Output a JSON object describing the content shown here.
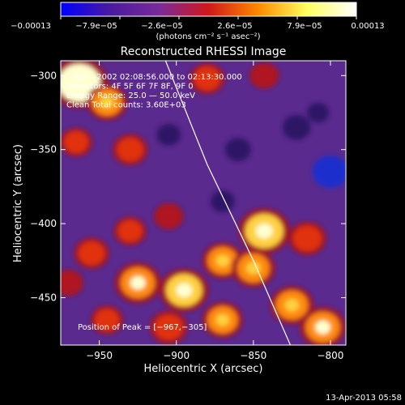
{
  "chart_data": {
    "type": "heatmap",
    "title": "Reconstructed RHESSI Image",
    "xlabel": "Heliocentric X (arcsec)",
    "ylabel": "Heliocentric Y (arcsec)",
    "xlim": [
      -975,
      -790
    ],
    "ylim": [
      -482,
      -290
    ],
    "x_ticks": [
      {
        "value": -950,
        "label": "−950"
      },
      {
        "value": -900,
        "label": "−900"
      },
      {
        "value": -850,
        "label": "−850"
      },
      {
        "value": -800,
        "label": "−800"
      }
    ],
    "y_ticks": [
      {
        "value": -300,
        "label": "−300"
      },
      {
        "value": -350,
        "label": "−350"
      },
      {
        "value": -400,
        "label": "−400"
      },
      {
        "value": -450,
        "label": "−450"
      }
    ],
    "colorbar": {
      "min": -0.00013,
      "max": 0.00013,
      "tick_labels": [
        "−0.00013",
        "−7.9e−05",
        "−2.6e−05",
        "2.6e−05",
        "7.9e−05",
        "0.00013"
      ],
      "unit_label": "(photons cm⁻² s⁻¹ asec⁻²)",
      "colors": [
        "#0000ff",
        "#4a1aa0",
        "#7a2a9a",
        "#d01818",
        "#ff8800",
        "#ffff60",
        "#ffffff"
      ]
    },
    "annotations": [
      "—Apr—2002 02:08:56.000 to 02:13:30.000",
      "Detectors: 4F 5F 6F 7F 8F, 9F 0",
      "Energy Range: 25.0 — 50.0 keV",
      "Clean    Total counts: 3.60E+03"
    ],
    "peak_label": "Position of Peak = [−967,−305]",
    "limb_curve": [
      [
        -907,
        -290
      ],
      [
        -880,
        -360
      ],
      [
        -850,
        -425
      ],
      [
        -826,
        -482
      ]
    ],
    "blobs": [
      {
        "x": -963,
        "y": -305,
        "value": 0.00013
      },
      {
        "x": -945,
        "y": -318,
        "value": 7e-05
      },
      {
        "x": -930,
        "y": -350,
        "value": 5e-05
      },
      {
        "x": -965,
        "y": -345,
        "value": 4e-05
      },
      {
        "x": -880,
        "y": -302,
        "value": 5e-05
      },
      {
        "x": -843,
        "y": -300,
        "value": 3e-05
      },
      {
        "x": -905,
        "y": -395,
        "value": 3e-05
      },
      {
        "x": -930,
        "y": -405,
        "value": 4e-05
      },
      {
        "x": -955,
        "y": -420,
        "value": 5e-05
      },
      {
        "x": -925,
        "y": -440,
        "value": 9e-05
      },
      {
        "x": -895,
        "y": -445,
        "value": 0.0001
      },
      {
        "x": -870,
        "y": -425,
        "value": 7e-05
      },
      {
        "x": -850,
        "y": -430,
        "value": 8e-05
      },
      {
        "x": -843,
        "y": -405,
        "value": 0.00011
      },
      {
        "x": -815,
        "y": -410,
        "value": 6e-05
      },
      {
        "x": -825,
        "y": -455,
        "value": 8e-05
      },
      {
        "x": -805,
        "y": -470,
        "value": 9e-05
      },
      {
        "x": -870,
        "y": -465,
        "value": 7e-05
      },
      {
        "x": -905,
        "y": -470,
        "value": 6e-05
      },
      {
        "x": -945,
        "y": -465,
        "value": 4e-05
      },
      {
        "x": -970,
        "y": -440,
        "value": 3e-05
      },
      {
        "x": -905,
        "y": -340,
        "value": -4e-05
      },
      {
        "x": -860,
        "y": -350,
        "value": -5e-05
      },
      {
        "x": -822,
        "y": -335,
        "value": -6e-05
      },
      {
        "x": -800,
        "y": -365,
        "value": -0.0001
      },
      {
        "x": -808,
        "y": -325,
        "value": -3e-05
      },
      {
        "x": -870,
        "y": -385,
        "value": -4e-05
      }
    ]
  },
  "footer": {
    "timestamp": "13-Apr-2013 05:58"
  }
}
